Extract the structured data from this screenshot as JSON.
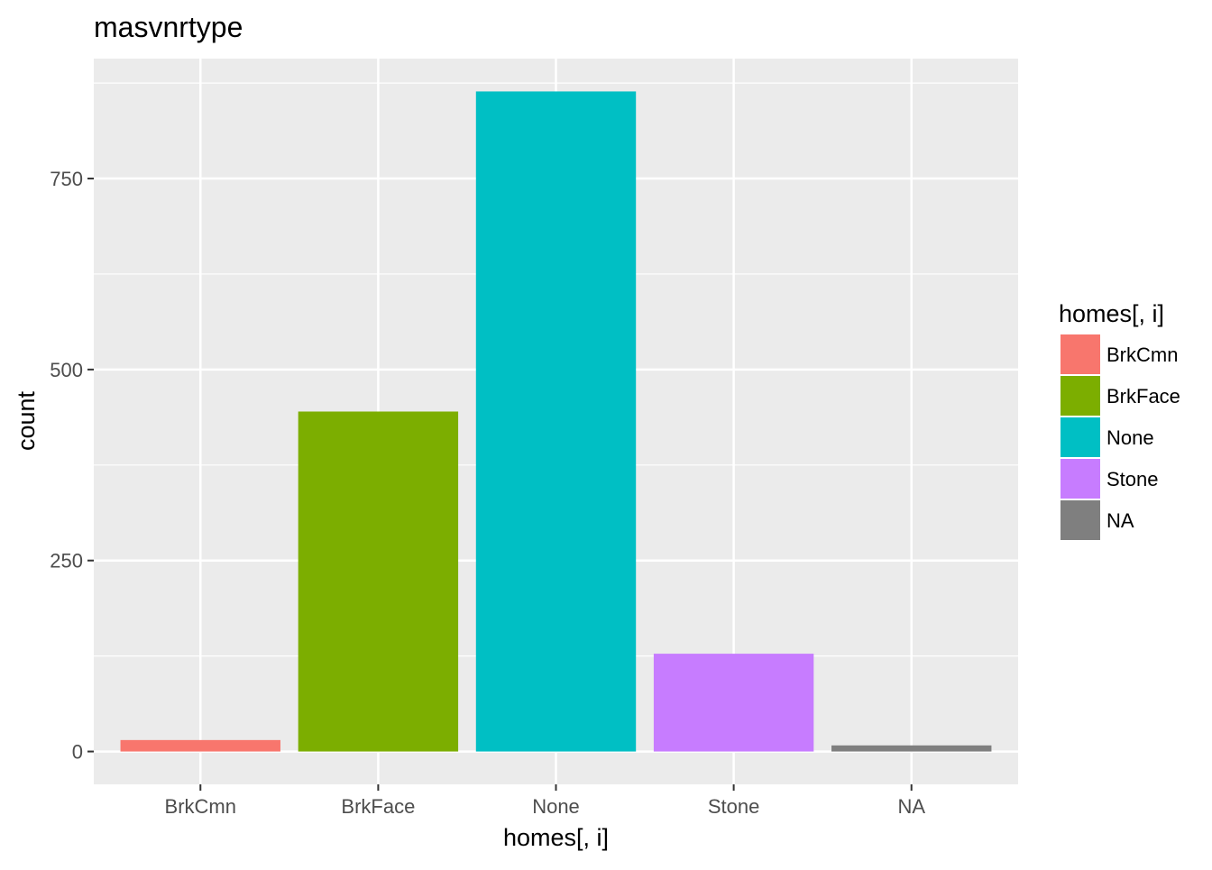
{
  "chart_data": {
    "type": "bar",
    "title": "masvnrtype",
    "xlabel": "homes[, i]",
    "ylabel": "count",
    "categories": [
      "BrkCmn",
      "BrkFace",
      "None",
      "Stone",
      "NA"
    ],
    "values": [
      15,
      445,
      864,
      128,
      8
    ],
    "colors": [
      "#F8766D",
      "#7CAE00",
      "#00BFC4",
      "#C77CFF",
      "#7F7F7F"
    ],
    "ylim": [
      -43,
      907
    ],
    "yticks": [
      0,
      250,
      500,
      750
    ],
    "ytick_labels": [
      "0",
      "250",
      "500",
      "750"
    ],
    "grid": true,
    "legend": {
      "title": "homes[, i]",
      "position": "right",
      "entries": [
        "BrkCmn",
        "BrkFace",
        "None",
        "Stone",
        "NA"
      ]
    }
  }
}
